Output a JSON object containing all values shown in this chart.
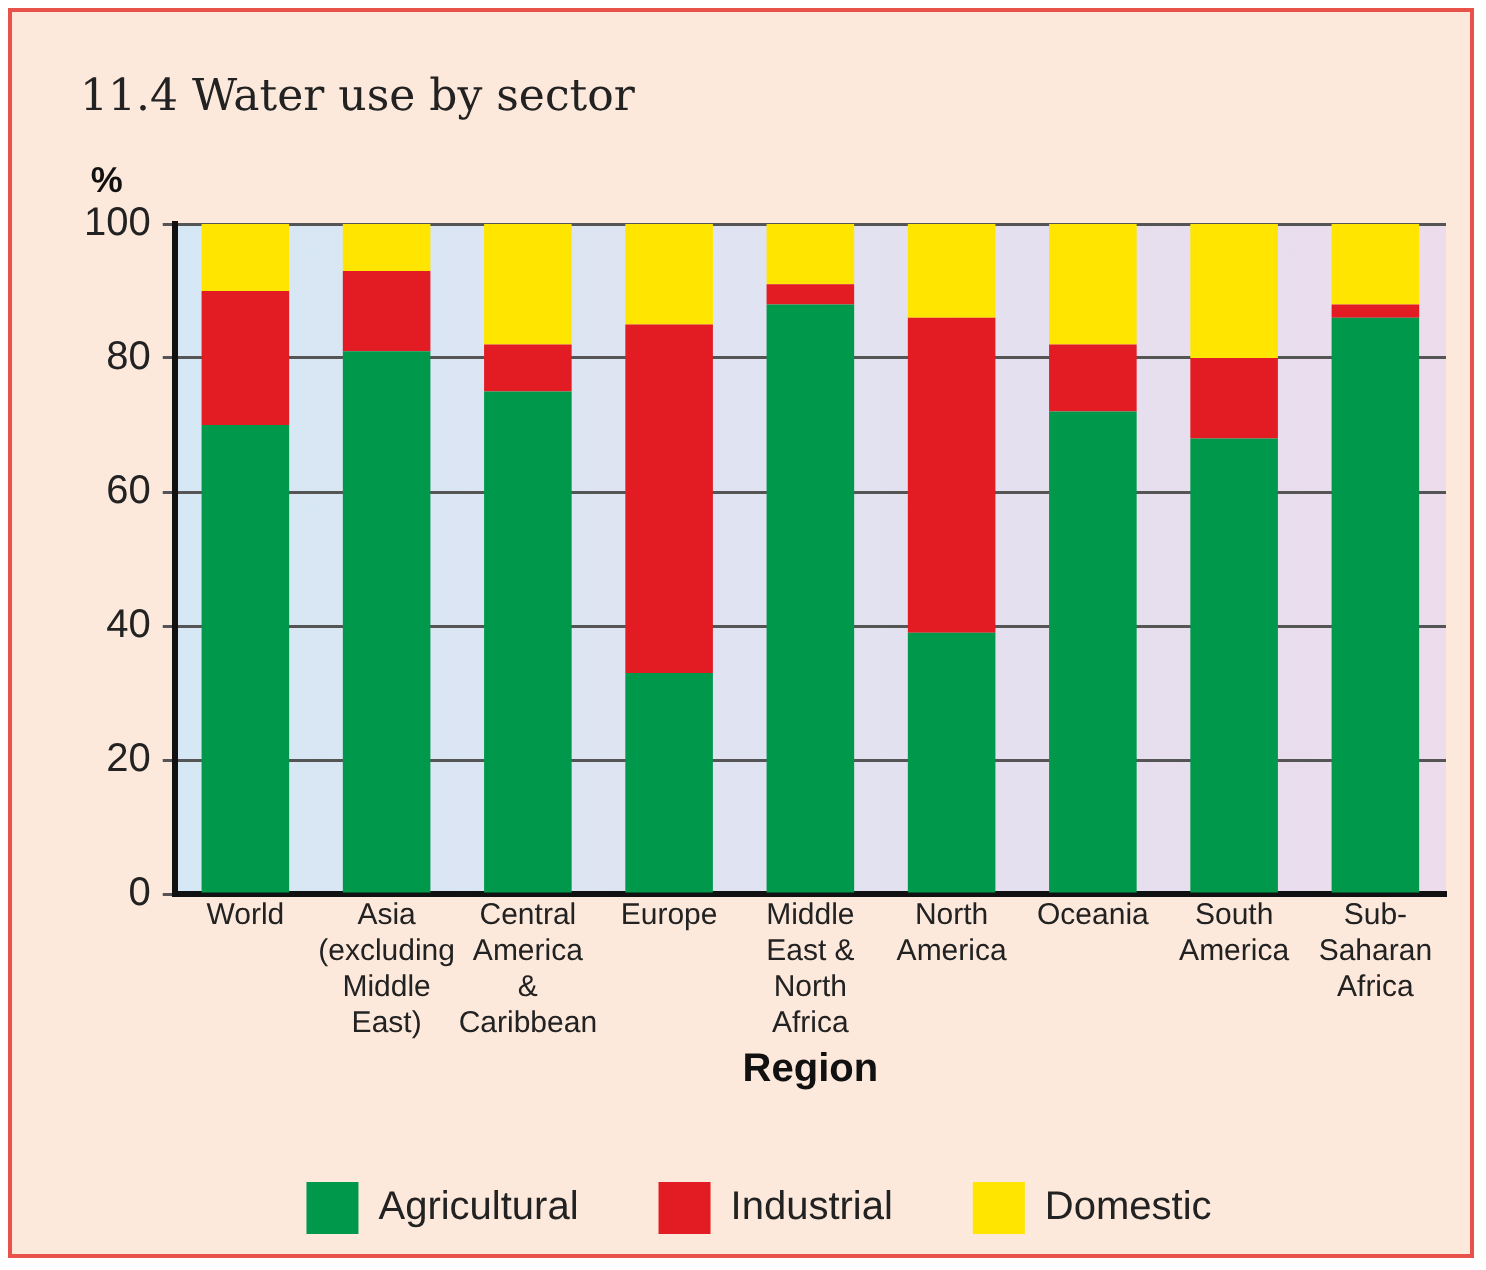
{
  "chart_data": {
    "type": "bar",
    "title": "11.4 Water use by sector",
    "xlabel": "Region",
    "ylabel": "%",
    "categories": [
      "World",
      "Asia\n(excluding\nMiddle\nEast)",
      "Central\nAmerica\n&\nCaribbean",
      "Europe",
      "Middle\nEast &\nNorth\nAfrica",
      "North\nAmerica",
      "Oceania",
      "South\nAmerica",
      "Sub-\nSaharan\nAfrica"
    ],
    "stacked": true,
    "series": [
      {
        "name": "Agricultural",
        "color": "#00994c",
        "values": [
          70,
          81,
          75,
          33,
          88,
          39,
          72,
          68,
          86
        ]
      },
      {
        "name": "Industrial",
        "color": "#e31b23",
        "values": [
          20,
          12,
          7,
          52,
          3,
          47,
          10,
          12,
          2
        ]
      },
      {
        "name": "Domestic",
        "color": "#ffe500",
        "values": [
          10,
          7,
          18,
          15,
          9,
          14,
          18,
          20,
          12
        ]
      }
    ],
    "ylim": [
      0,
      100
    ],
    "yticks": [
      0,
      20,
      40,
      60,
      80,
      100
    ],
    "grid": "y",
    "legend": "bottom"
  }
}
